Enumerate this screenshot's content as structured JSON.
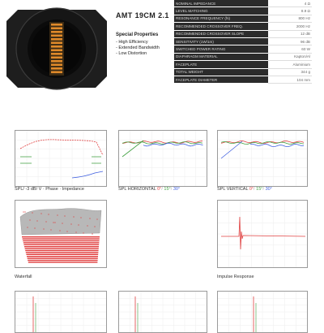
{
  "product": {
    "title": "AMT 19CM 2.1",
    "special_properties_title": "Special Properties",
    "properties": [
      "- High Efficiency",
      "- Extended Bandwidth",
      "- Low Distortion"
    ]
  },
  "spec_table": [
    {
      "label": "NOMINAL IMPEDANCE",
      "value": "4 Ω"
    },
    {
      "label": "LEVEL MATCHING",
      "value": "8.9 Ω"
    },
    {
      "label": "RESONANCE FREQUENCY (fs)",
      "value": "800 Hz"
    },
    {
      "label": "RECOMMENDED CROSSOVER FREQ.",
      "value": "2000 Hz"
    },
    {
      "label": "RECOMMENDED CROSSOVER SLOPE",
      "value": "12 dB"
    },
    {
      "label": "SENSITIVITY (1W/1m)",
      "value": "96 dB"
    },
    {
      "label": "SWITCHED POWER RATING",
      "value": "60 W"
    },
    {
      "label": "DIAPHRAGM MATERIAL",
      "value": "Kapton/Al"
    },
    {
      "label": "FACEPLATE",
      "value": "Aluminium"
    },
    {
      "label": "TOTAL WEIGHT",
      "value": "344 g"
    },
    {
      "label": "FACEPLATE DIAMETER",
      "value": "104 mm"
    }
  ],
  "captions": {
    "spl_phase": "SPL/ -3 dB/ V · Phase · Impedance",
    "spl_hor_label": "SPL HORIZONTAL",
    "spl_vert_label": "SPL VERTICAL",
    "angle_0": "0°",
    "angle_15": "15°",
    "angle_30": "30°",
    "waterfall": "Waterfall",
    "impulse": "Impulse Response"
  },
  "colors": {
    "red": "#e04040",
    "green": "#40a040",
    "blue": "#4060e0",
    "waterfall_top": "#b8b8b8",
    "waterfall_bottom": "#e03c3c"
  }
}
